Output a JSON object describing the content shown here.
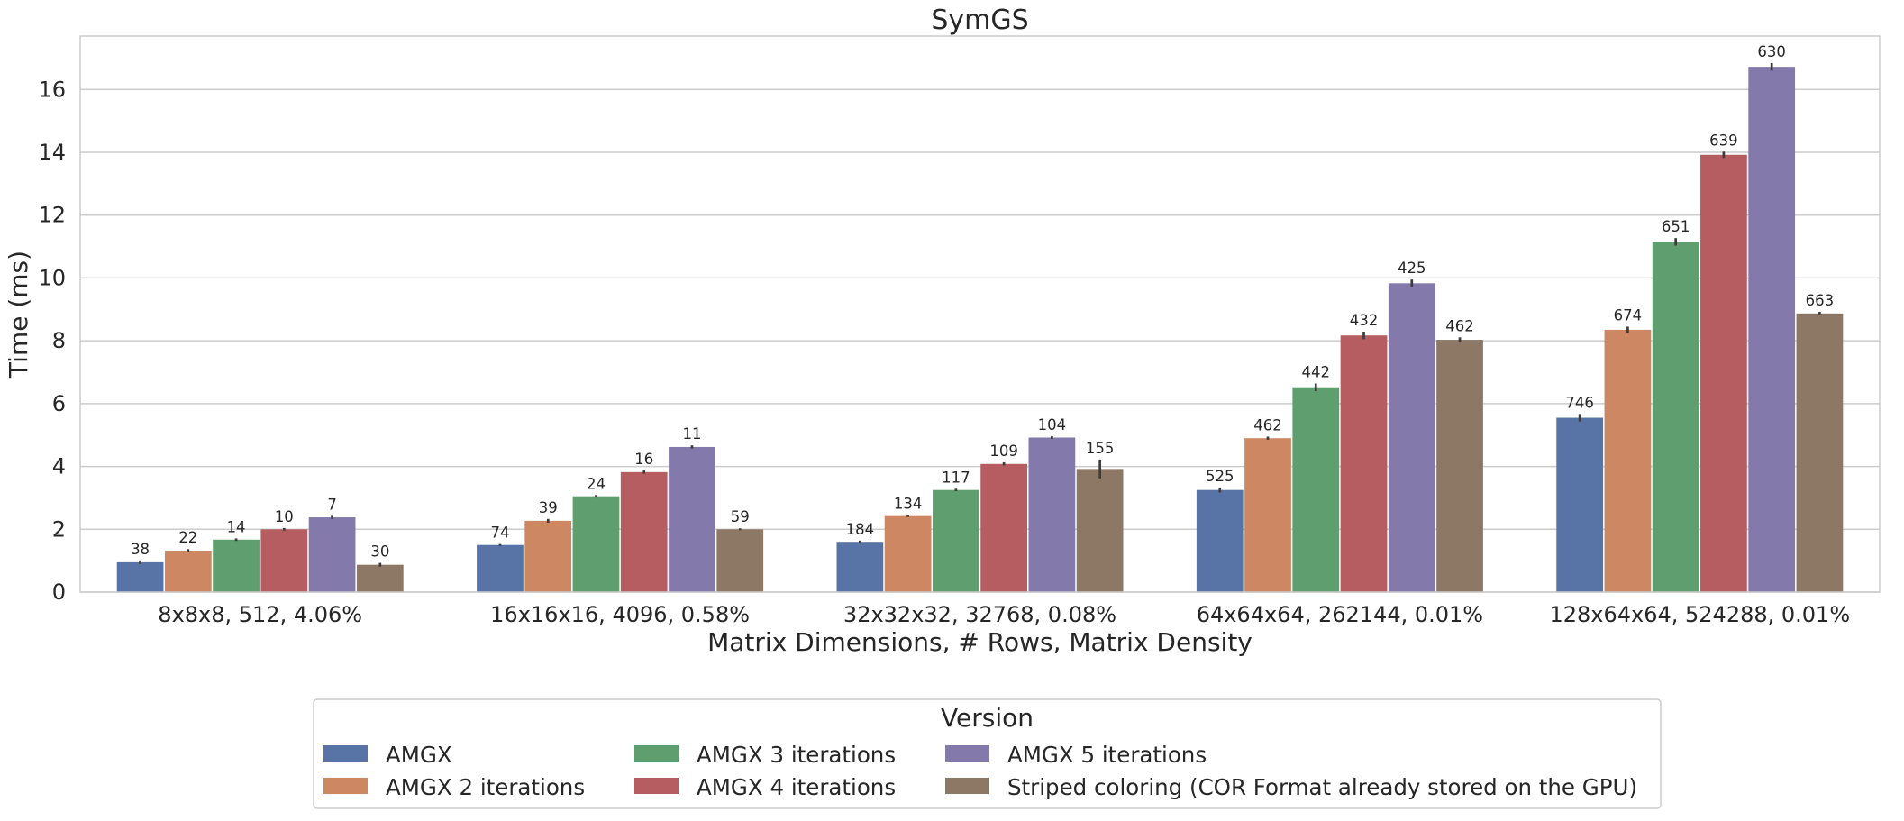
{
  "chart_data": {
    "type": "bar",
    "title": "SymGS",
    "xlabel": "Matrix Dimensions, # Rows, Matrix Density",
    "ylabel": "Time (ms)",
    "ylim": [
      0,
      17.7
    ],
    "yticks": [
      0,
      2,
      4,
      6,
      8,
      10,
      12,
      14,
      16
    ],
    "grid": "horizontal",
    "categories": [
      "8x8x8, 512, 4.06%",
      "16x16x16, 4096, 0.58%",
      "32x32x32, 32768, 0.08%",
      "64x64x64, 262144, 0.01%",
      "128x64x64, 524288, 0.01%"
    ],
    "series": [
      {
        "name": "AMGX",
        "color": "#5874a6",
        "values": [
          0.95,
          1.5,
          1.6,
          3.25,
          5.55
        ],
        "error": [
          0.06,
          0.03,
          0.04,
          0.08,
          0.12
        ],
        "labels": [
          "38",
          "74",
          "184",
          "525",
          "746"
        ]
      },
      {
        "name": "AMGX 2 iterations",
        "color": "#cd8863",
        "values": [
          1.32,
          2.27,
          2.42,
          4.9,
          8.35
        ],
        "error": [
          0.05,
          0.06,
          0.03,
          0.05,
          0.1
        ],
        "labels": [
          "22",
          "39",
          "134",
          "462",
          "674"
        ]
      },
      {
        "name": "AMGX 3 iterations",
        "color": "#5f9e6e",
        "values": [
          1.67,
          3.05,
          3.25,
          6.52,
          11.15
        ],
        "error": [
          0.04,
          0.04,
          0.04,
          0.12,
          0.12
        ],
        "labels": [
          "14",
          "24",
          "117",
          "442",
          "651"
        ]
      },
      {
        "name": "AMGX 4 iterations",
        "color": "#b55d60",
        "values": [
          2.0,
          3.82,
          4.08,
          8.17,
          13.92
        ],
        "error": [
          0.04,
          0.05,
          0.05,
          0.12,
          0.1
        ],
        "labels": [
          "10",
          "16",
          "109",
          "432",
          "639"
        ]
      },
      {
        "name": "AMGX 5 iterations",
        "color": "#8379ab",
        "values": [
          2.38,
          4.62,
          4.92,
          9.83,
          16.72
        ],
        "error": [
          0.05,
          0.05,
          0.04,
          0.12,
          0.12
        ],
        "labels": [
          "7",
          "11",
          "104",
          "425",
          "630"
        ]
      },
      {
        "name": "Striped coloring (COR Format already stored on the GPU)",
        "color": "#8d7866",
        "values": [
          0.87,
          2.0,
          3.92,
          8.03,
          8.87
        ],
        "error": [
          0.06,
          0.03,
          0.3,
          0.08,
          0.05
        ],
        "labels": [
          "30",
          "59",
          "155",
          "462",
          "663"
        ]
      }
    ],
    "legend": {
      "title": "Version",
      "placement": "bottom-center",
      "columns": 3
    }
  }
}
